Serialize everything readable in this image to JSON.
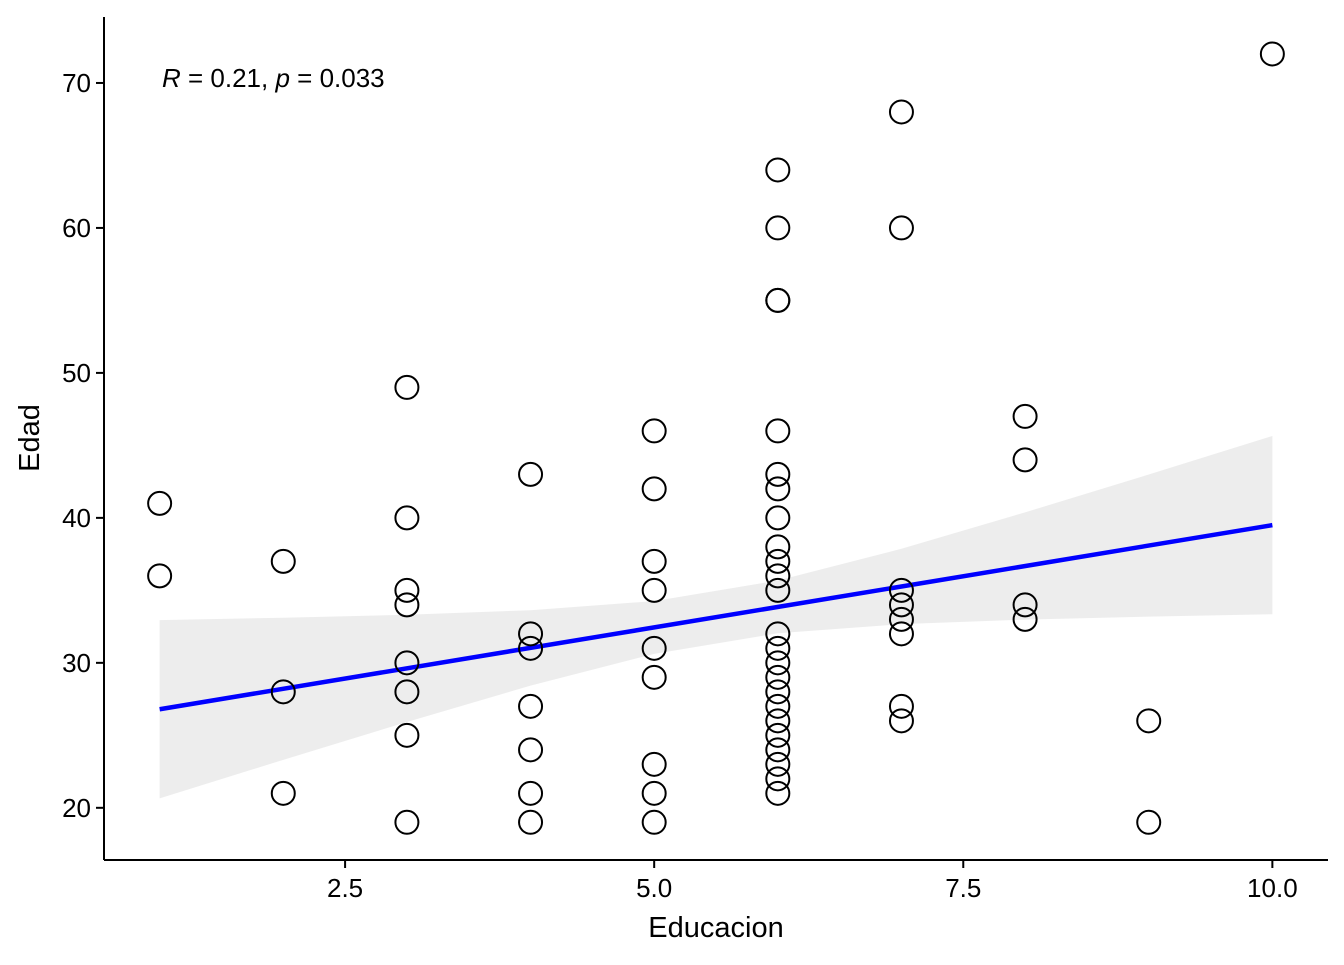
{
  "chart_data": {
    "type": "scatter",
    "xlabel": "Educacion",
    "ylabel": "Edad",
    "xlim": [
      0.55,
      10.45
    ],
    "ylim": [
      16.4,
      74.55
    ],
    "xticks": [
      2.5,
      5.0,
      7.5,
      10.0
    ],
    "xtick_labels": [
      "2.5",
      "5.0",
      "7.5",
      "10.0"
    ],
    "yticks": [
      20,
      30,
      40,
      50,
      60,
      70
    ],
    "ytick_labels": [
      "20",
      "30",
      "40",
      "50",
      "60",
      "70"
    ],
    "grid": false,
    "annotation": {
      "r_label": "R",
      "r_text": " = 0.21, ",
      "p_label": "p",
      "p_text": " = 0.033"
    },
    "points": [
      [
        1,
        41
      ],
      [
        1,
        36
      ],
      [
        2,
        37
      ],
      [
        2,
        28
      ],
      [
        2,
        21
      ],
      [
        3,
        49
      ],
      [
        3,
        40
      ],
      [
        3,
        35
      ],
      [
        3,
        34
      ],
      [
        3,
        30
      ],
      [
        3,
        28
      ],
      [
        3,
        25
      ],
      [
        3,
        19
      ],
      [
        4,
        43
      ],
      [
        4,
        32
      ],
      [
        4,
        31
      ],
      [
        4,
        27
      ],
      [
        4,
        24
      ],
      [
        4,
        21
      ],
      [
        4,
        19
      ],
      [
        5,
        46
      ],
      [
        5,
        42
      ],
      [
        5,
        37
      ],
      [
        5,
        35
      ],
      [
        5,
        31
      ],
      [
        5,
        29
      ],
      [
        5,
        23
      ],
      [
        5,
        21
      ],
      [
        5,
        19
      ],
      [
        6,
        64
      ],
      [
        6,
        60
      ],
      [
        6,
        55
      ],
      [
        6,
        55
      ],
      [
        6,
        46
      ],
      [
        6,
        43
      ],
      [
        6,
        42
      ],
      [
        6,
        40
      ],
      [
        6,
        38
      ],
      [
        6,
        37
      ],
      [
        6,
        36
      ],
      [
        6,
        35
      ],
      [
        6,
        32
      ],
      [
        6,
        31
      ],
      [
        6,
        30
      ],
      [
        6,
        29
      ],
      [
        6,
        28
      ],
      [
        6,
        27
      ],
      [
        6,
        26
      ],
      [
        6,
        25
      ],
      [
        6,
        24
      ],
      [
        6,
        23
      ],
      [
        6,
        22
      ],
      [
        6,
        21
      ],
      [
        7,
        68
      ],
      [
        7,
        60
      ],
      [
        7,
        35
      ],
      [
        7,
        34
      ],
      [
        7,
        33
      ],
      [
        7,
        32
      ],
      [
        7,
        27
      ],
      [
        7,
        26
      ],
      [
        8,
        47
      ],
      [
        8,
        44
      ],
      [
        8,
        34
      ],
      [
        8,
        33
      ],
      [
        9,
        26
      ],
      [
        9,
        19
      ],
      [
        10,
        72
      ]
    ],
    "fit_line": {
      "color": "#0000ff",
      "x": [
        1,
        10
      ],
      "y": [
        26.8,
        39.5
      ]
    },
    "confidence_band": {
      "color": "#ebebeb",
      "x": [
        1,
        2,
        3,
        4,
        5,
        6,
        7,
        8,
        9,
        10
      ],
      "lower": [
        20.65,
        23.31,
        25.92,
        28.43,
        30.62,
        32.04,
        32.67,
        32.98,
        33.19,
        33.35
      ],
      "upper": [
        32.95,
        33.11,
        33.32,
        33.63,
        34.26,
        35.68,
        37.87,
        40.38,
        42.99,
        45.65
      ]
    }
  }
}
